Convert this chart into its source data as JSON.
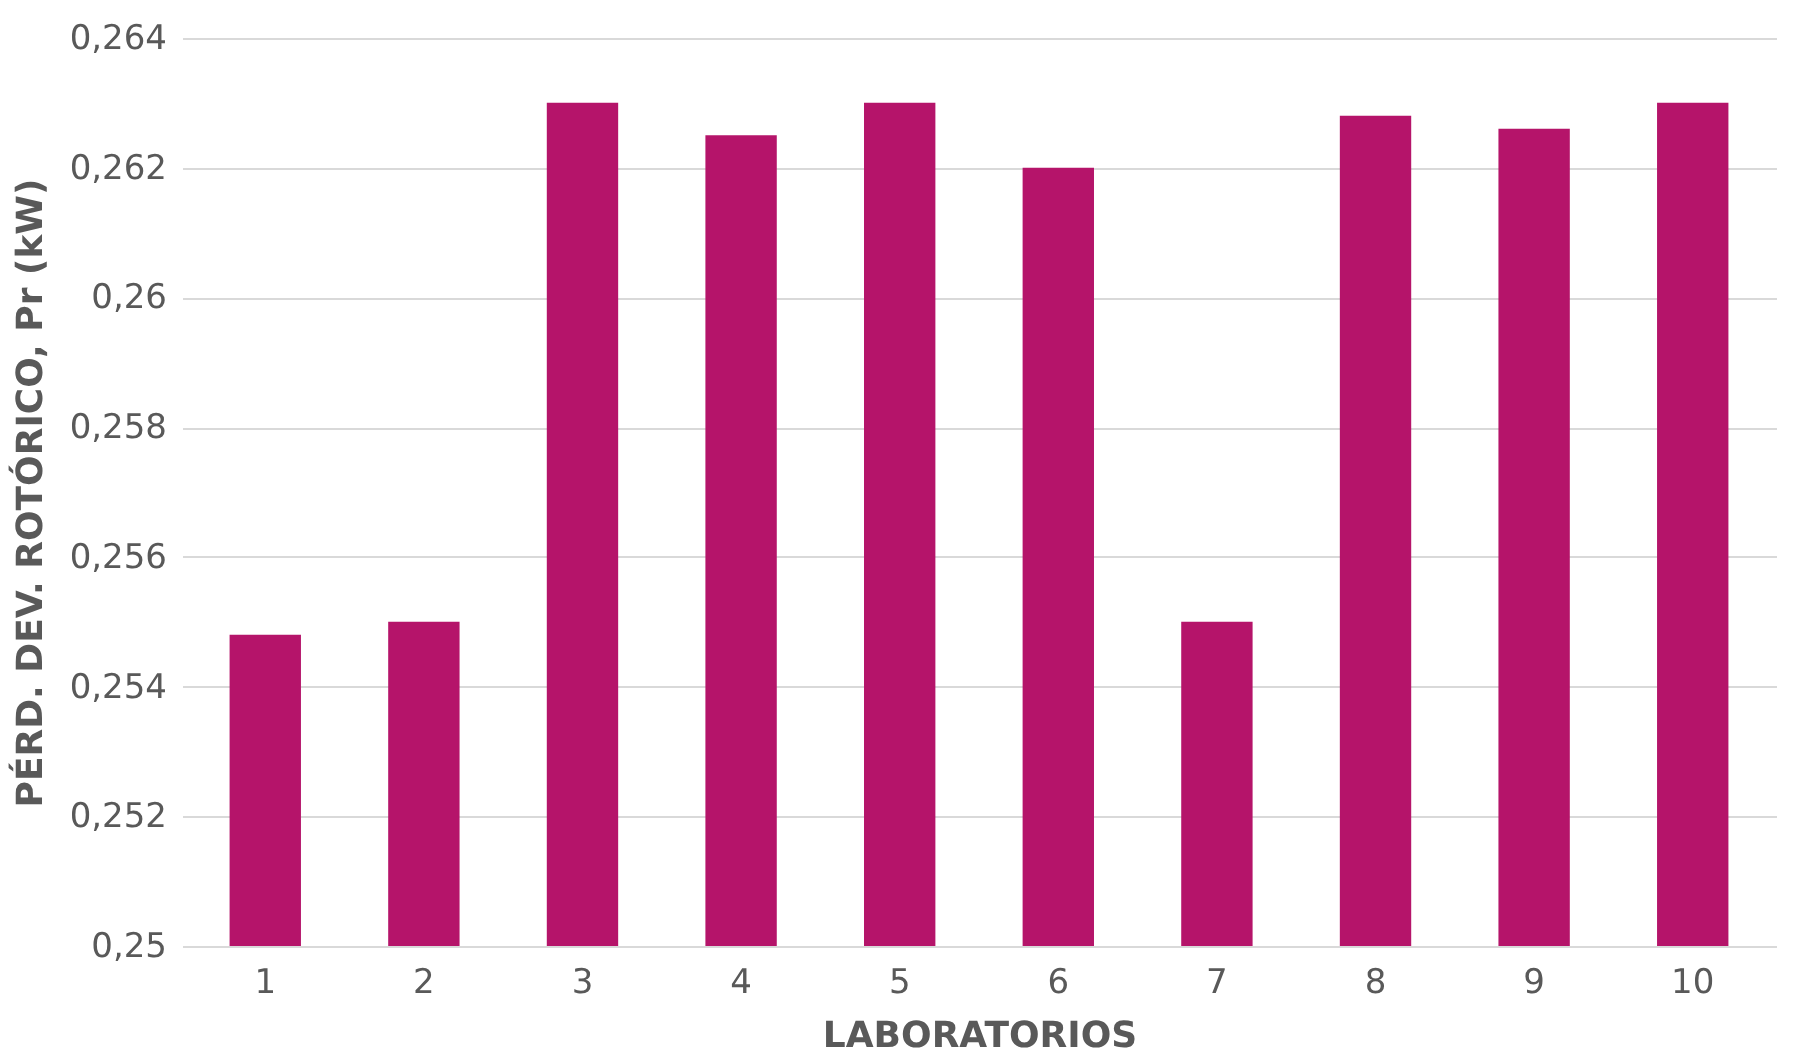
{
  "chart_data": {
    "type": "bar",
    "xlabel": "LABORATORIOS",
    "ylabel": "PÉRD. DEV. ROTÓRICO, Pr (kW)",
    "categories": [
      "1",
      "2",
      "3",
      "4",
      "5",
      "6",
      "7",
      "8",
      "9",
      "10"
    ],
    "values": [
      0.2548,
      0.255,
      0.263,
      0.2625,
      0.263,
      0.262,
      0.255,
      0.2628,
      0.2626,
      0.263
    ],
    "color": "#b5146a",
    "ylim": [
      0.25,
      0.264
    ],
    "yticks": [
      {
        "value": 0.25,
        "label": "0,25"
      },
      {
        "value": 0.252,
        "label": "0,252"
      },
      {
        "value": 0.254,
        "label": "0,254"
      },
      {
        "value": 0.256,
        "label": "0,256"
      },
      {
        "value": 0.258,
        "label": "0,258"
      },
      {
        "value": 0.26,
        "label": "0,26"
      },
      {
        "value": 0.262,
        "label": "0,262"
      },
      {
        "value": 0.264,
        "label": "0,264"
      }
    ],
    "grid": "y"
  }
}
